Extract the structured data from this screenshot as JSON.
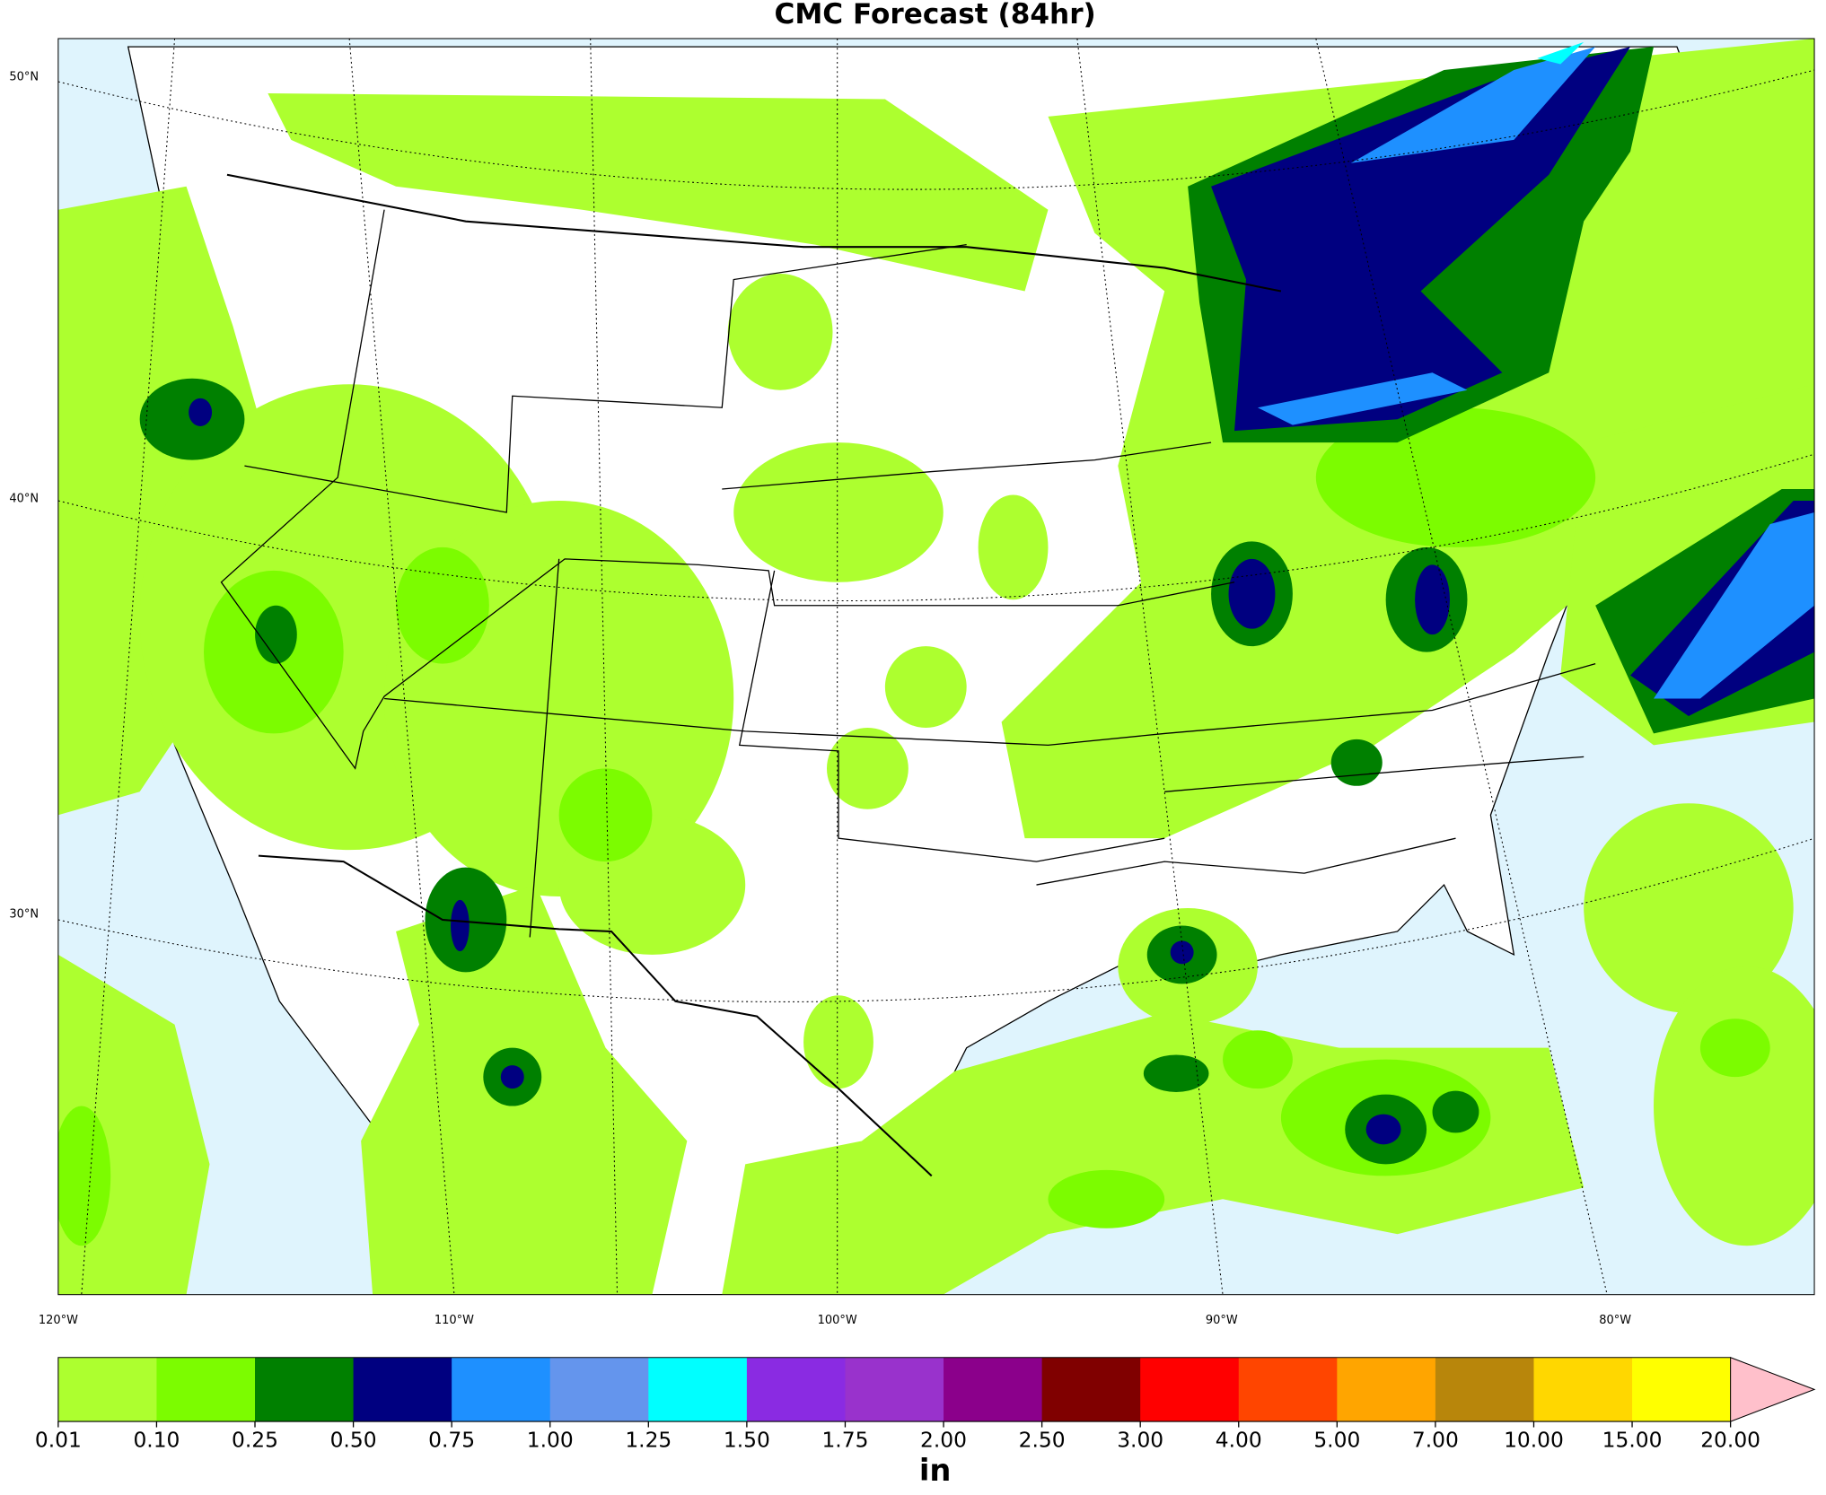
{
  "title": "CMC Forecast (84hr)",
  "latitude_labels": [
    "50°N",
    "40°N",
    "30°N"
  ],
  "longitude_labels": [
    "120°W",
    "110°W",
    "100°W",
    "90°W",
    "80°W"
  ],
  "colorbar": {
    "unit": "in",
    "ticks": [
      0.01,
      {
        "value": 0.1,
        "label": "0.10"
      },
      0.25,
      {
        "value": 0.5,
        "label": "0.50"
      },
      0.75,
      {
        "value": 1,
        "label": "1.00"
      },
      1.25,
      {
        "value": 1.5,
        "label": "1.50"
      },
      1.75,
      {
        "value": 2,
        "label": "2.00"
      },
      {
        "value": 2.5,
        "label": "2.50"
      },
      {
        "value": 3,
        "label": "3.00"
      },
      {
        "value": 4,
        "label": "4.00"
      },
      {
        "value": 5,
        "label": "5.00"
      },
      {
        "value": 7,
        "label": "7.00"
      },
      {
        "value": 10,
        "label": "10.00"
      },
      {
        "value": 15,
        "label": "15.00"
      },
      {
        "value": 20,
        "label": "20.00"
      }
    ],
    "colors": [
      "#adff2f",
      "#7cfc00",
      "#008000",
      "#000080",
      "#1e90ff",
      "#6495ed",
      "#00ffff",
      "#8a2be2",
      "#9932cc",
      "#8b008b",
      "#800000",
      "#ff0000",
      "#ff4500",
      "#ffa500",
      "#b8860b",
      "#ffd700",
      "#ffff00"
    ],
    "extend_color": "#ffc0cb"
  }
}
